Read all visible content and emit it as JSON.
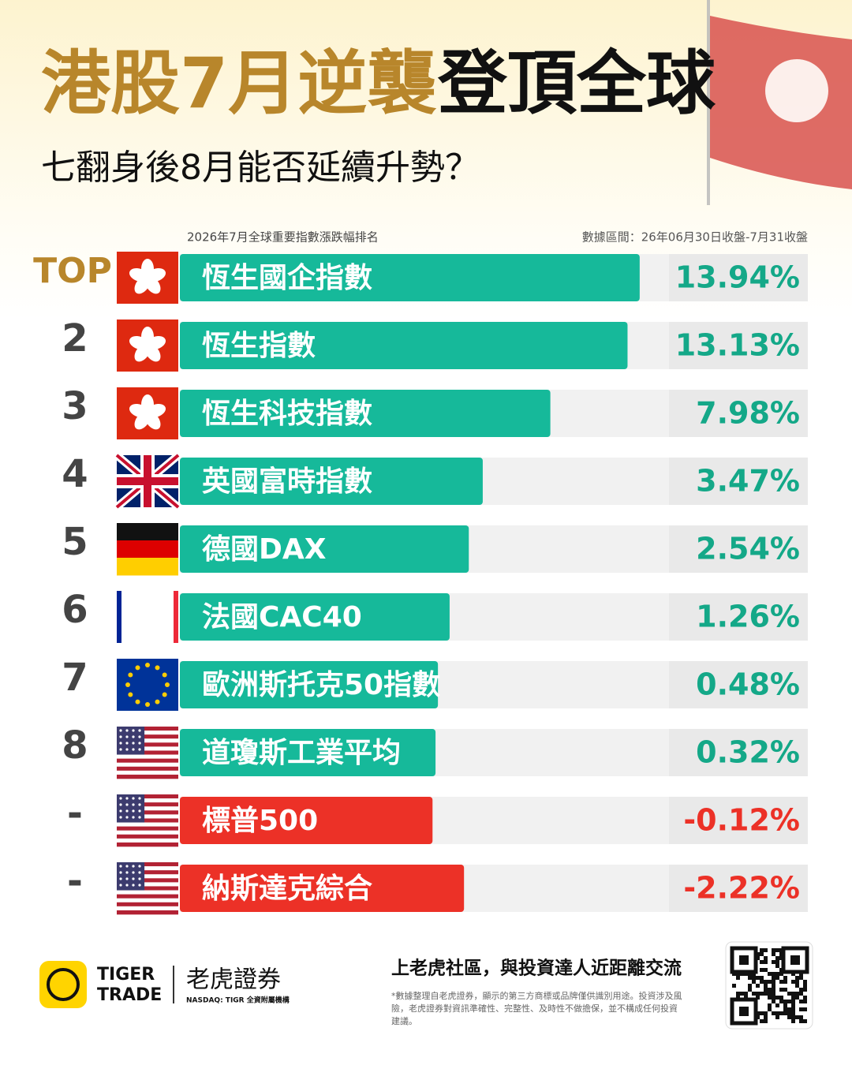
{
  "chart_data": {
    "type": "bar",
    "title": [
      "港股7月逆襲",
      "登頂全球"
    ],
    "subtitle": "七翻身後8月能否延續升勢？",
    "chart_title": "2026年7月全球重要指數漲跌幅排名",
    "note": "數據區間：26年06月30日收盤-7月31收盤",
    "ranks": [
      "TOP",
      "2",
      "3",
      "4",
      "5",
      "6",
      "7",
      "8",
      "-",
      "-"
    ],
    "categories": [
      "恆生國企指數",
      "恆生指數",
      "恆生科技指數",
      "英國富時指數",
      "德國DAX",
      "法國CAC40",
      "歐洲斯托克50指數",
      "道瓊斯工業平均",
      "標普500",
      "納斯達克綜合"
    ],
    "values": [
      13.94,
      13.13,
      7.98,
      3.47,
      2.54,
      1.26,
      0.48,
      0.32,
      -0.12,
      -2.22
    ],
    "value_labels": [
      "13.94%",
      "13.13%",
      "7.98%",
      "3.47%",
      "2.54%",
      "1.26%",
      "0.48%",
      "0.32%",
      "-0.12%",
      "-2.22%"
    ],
    "colors": {
      "positive": "#16b99a",
      "negative": "#ec3127",
      "title_gold": "#b8862b"
    }
  },
  "footer": {
    "brand": [
      "TIGER",
      "TRADE"
    ],
    "brand_cn": "老虎證券",
    "brand_sub": "NASDAQ: TIGR 全資附屬機構",
    "slogan": "上老虎社區，與投資達人近距離交流",
    "disclaimer": [
      "*數據整理自老虎證券，顯示的第三方商標或品牌僅供識別用途。投資涉及風",
      "險，老虎證券對資訊準確性、完整性、及時性不做擔保，並不構成任何投資",
      "建議。"
    ]
  }
}
